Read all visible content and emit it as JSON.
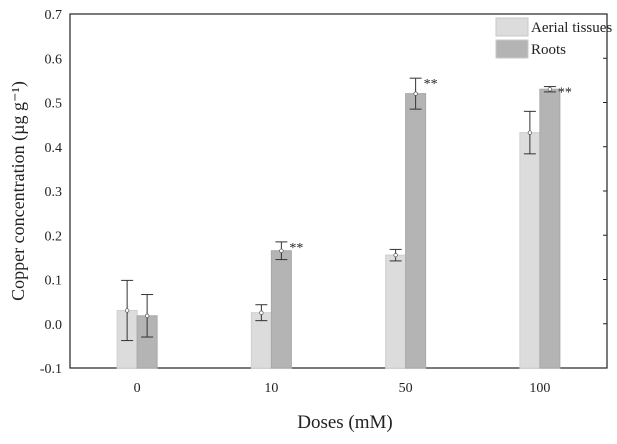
{
  "chart_data": {
    "type": "bar",
    "title": "",
    "xlabel": "Doses (mM)",
    "ylabel": "Copper concentration (µg g⁻¹)",
    "ylim": [
      -0.1,
      0.7
    ],
    "yticks": [
      "-0.1",
      "0.0",
      "0.1",
      "0.2",
      "0.3",
      "0.4",
      "0.5",
      "0.6",
      "0.7"
    ],
    "categories": [
      "0",
      "10",
      "50",
      "100"
    ],
    "grid": false,
    "legend_position": "top-right",
    "series": [
      {
        "name": "Aerial tissues",
        "color": "#dcdcdc",
        "values": [
          0.03,
          0.025,
          0.155,
          0.432
        ],
        "errors": [
          0.068,
          0.018,
          0.013,
          0.048
        ]
      },
      {
        "name": "Roots",
        "color": "#b4b4b4",
        "values": [
          0.018,
          0.165,
          0.52,
          0.53
        ],
        "errors": [
          0.048,
          0.02,
          0.035,
          0.006
        ]
      }
    ],
    "annotations": [
      {
        "category": "10",
        "series": "Roots",
        "text": "**"
      },
      {
        "category": "50",
        "series": "Roots",
        "text": "**"
      },
      {
        "category": "100",
        "series": "Roots",
        "text": "**"
      }
    ]
  }
}
